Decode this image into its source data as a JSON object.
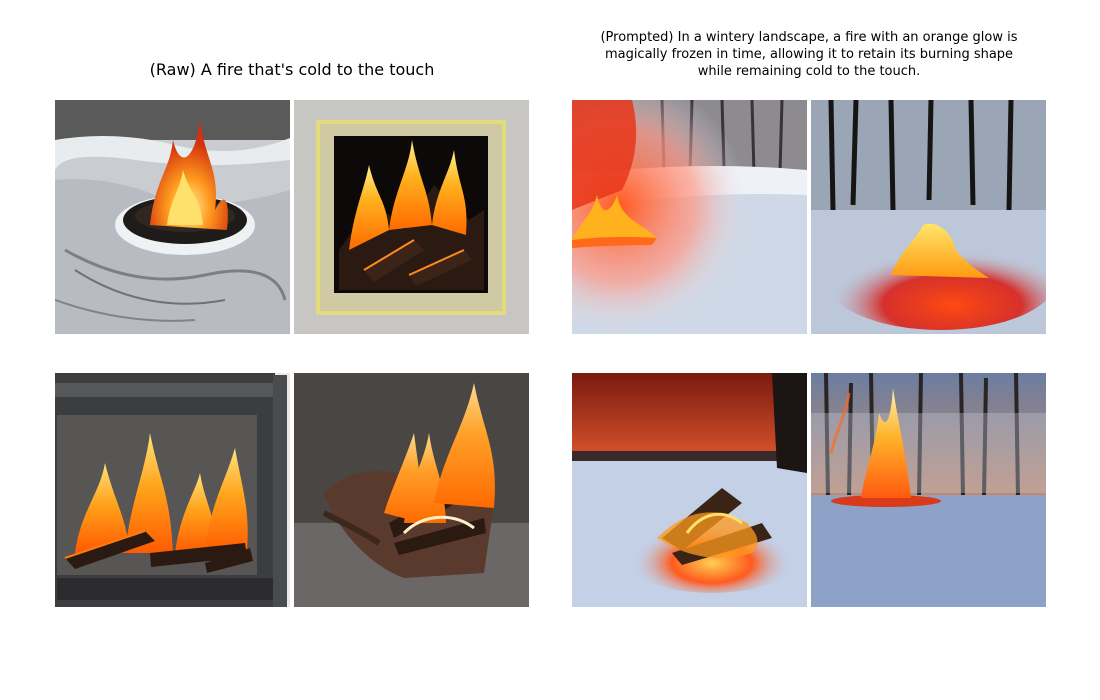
{
  "figure": {
    "left_title": "(Raw) A fire that's cold to the touch",
    "right_title_lines": [
      "(Prompted) In a wintery landscape, a fire with an orange glow is",
      "magically frozen in time, allowing it to retain its burning shape",
      "while remaining cold to the touch."
    ]
  },
  "colors": {
    "flame_orange": "#ff8c1a",
    "flame_yellow": "#ffd23a",
    "flame_red": "#e8361a",
    "snow": "#dfe6f0",
    "coal": "#1a120e"
  }
}
